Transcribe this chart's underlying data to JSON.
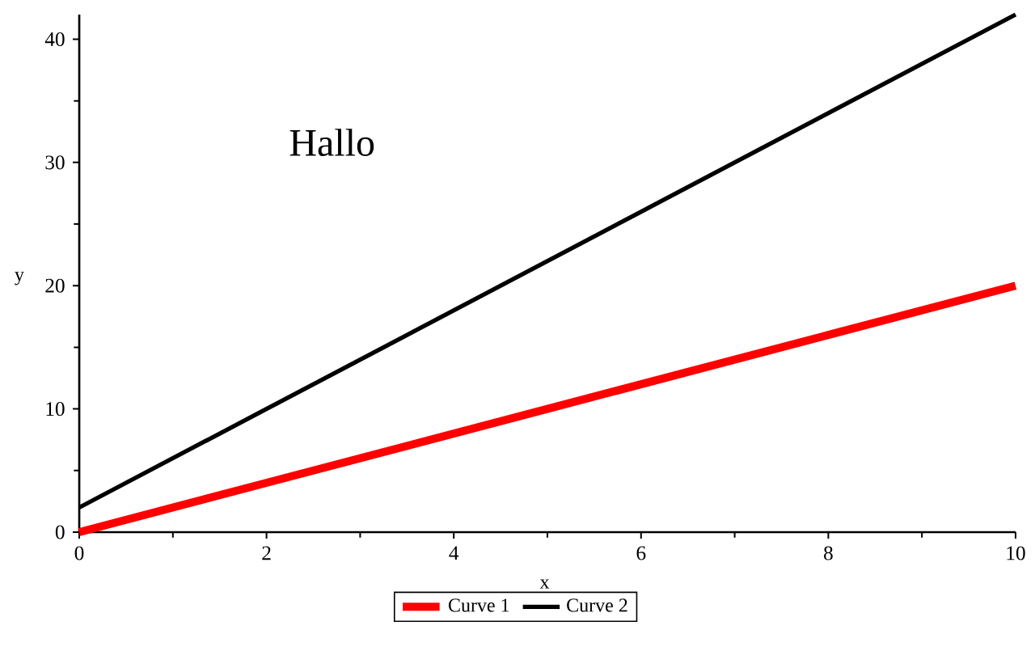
{
  "chart_data": {
    "type": "line",
    "xlabel": "x",
    "ylabel": "y",
    "annotations": [
      "Hallo"
    ],
    "x": [
      0,
      2,
      4,
      6,
      8,
      10
    ],
    "series": [
      {
        "name": "Curve 1",
        "color": "#ff0000",
        "values": [
          0,
          4,
          8,
          12,
          16,
          20
        ]
      },
      {
        "name": "Curve 2",
        "color": "#000000",
        "values": [
          2,
          10,
          18,
          26,
          34,
          42
        ]
      }
    ],
    "xlim": [
      0,
      10
    ],
    "ylim": [
      0,
      42
    ],
    "xticks": [
      0,
      {
        "value": 1,
        "label": null
      },
      2,
      {
        "value": 3,
        "label": null
      },
      4,
      {
        "value": 5,
        "label": null
      },
      6,
      {
        "value": 7,
        "label": null
      },
      8,
      {
        "value": 9,
        "label": null
      },
      10
    ],
    "yticks": [
      0,
      {
        "value": 5,
        "label": null
      },
      10,
      {
        "value": 15,
        "label": null
      },
      20,
      {
        "value": 25,
        "label": null
      },
      30,
      {
        "value": 35,
        "label": null
      },
      40
    ],
    "legend": "bottom"
  }
}
